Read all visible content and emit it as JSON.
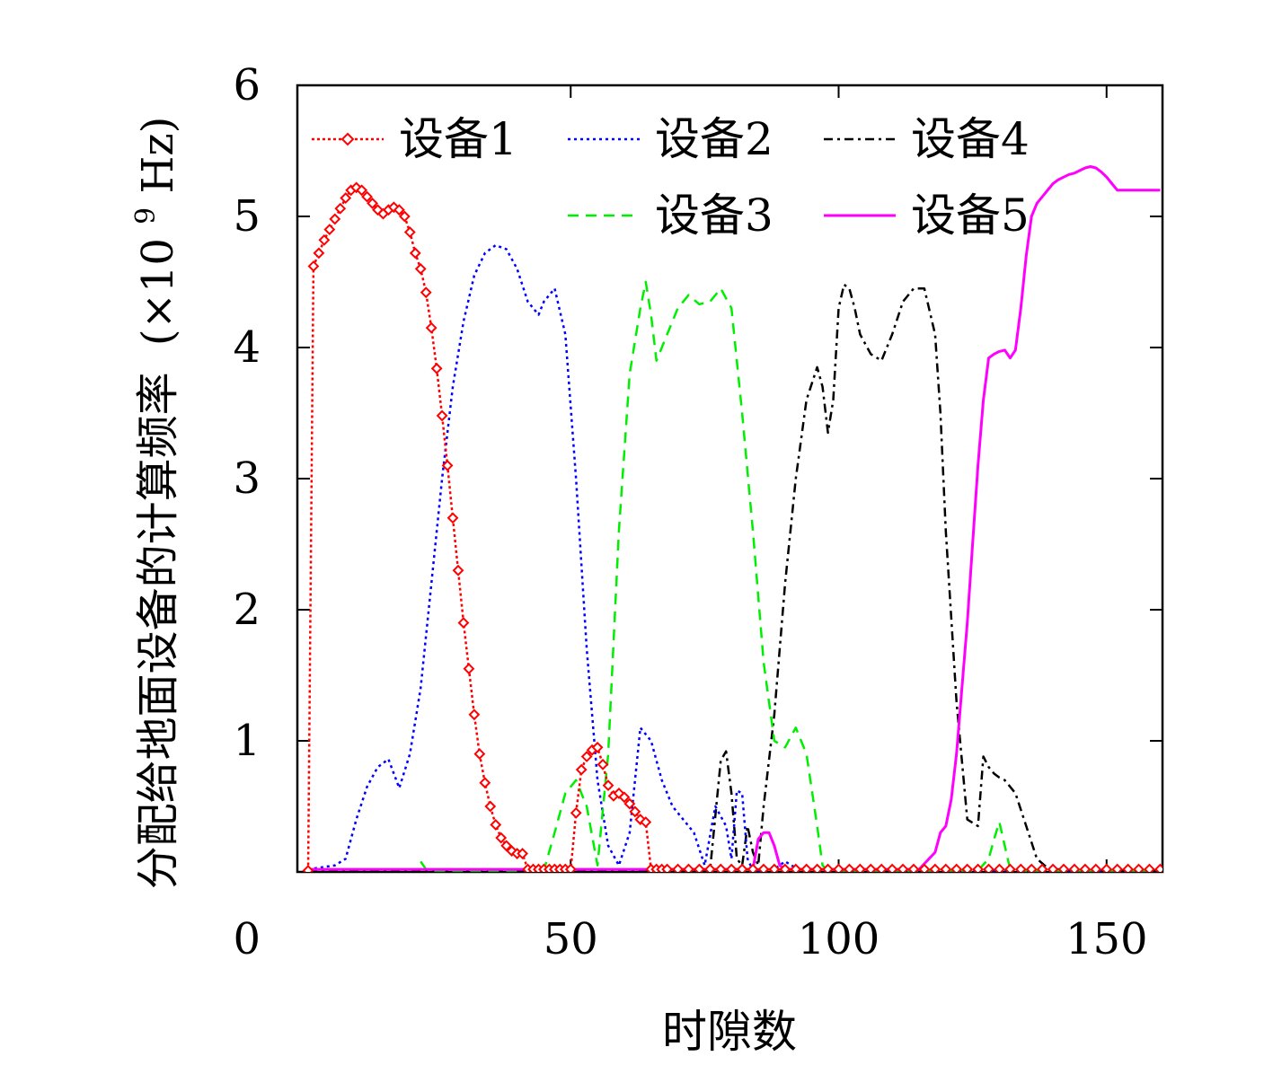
{
  "chart_data": {
    "type": "line",
    "xlabel": "时隙数",
    "ylabel": "分配给地面设备的计算频率 (×10⁹ Hz)",
    "ylabel_main": "分配给地面设备的计算频率",
    "ylabel_unit": "(×10",
    "ylabel_exp": "9",
    "ylabel_unit_end": " Hz)",
    "xlim": [
      0,
      160
    ],
    "ylim": [
      0,
      6
    ],
    "xticks": [
      0,
      50,
      100,
      150
    ],
    "yticks": [
      0,
      1,
      2,
      3,
      4,
      5,
      6
    ],
    "grid": false,
    "legend_placement": "top",
    "series": [
      {
        "name": "设备1",
        "color": "#ff0000",
        "style": "dotted-diamond",
        "x": [
          1,
          2,
          3,
          4,
          5,
          6,
          7,
          8,
          9,
          10,
          11,
          12,
          13,
          14,
          15,
          16,
          17,
          18,
          19,
          20,
          21,
          22,
          23,
          24,
          25,
          26,
          27,
          28,
          29,
          30,
          31,
          32,
          33,
          34,
          35,
          36,
          37,
          38,
          39,
          40,
          41,
          42,
          43,
          44,
          45,
          46,
          47,
          48,
          49,
          50,
          51,
          52,
          53,
          54,
          55,
          56,
          57,
          58,
          59,
          60,
          61,
          62,
          63,
          64,
          65,
          66,
          67,
          68,
          70,
          72,
          74,
          76,
          78,
          80,
          82,
          84,
          86,
          88,
          90,
          92,
          94,
          96,
          98,
          100,
          102,
          104,
          106,
          108,
          110,
          112,
          114,
          116,
          118,
          120,
          122,
          124,
          126,
          128,
          130,
          132,
          134,
          136,
          138,
          140,
          142,
          144,
          146,
          148,
          150,
          152,
          154,
          156,
          158,
          160
        ],
        "values": [
          0.01,
          4.62,
          4.72,
          4.82,
          4.9,
          4.98,
          5.06,
          5.14,
          5.2,
          5.22,
          5.2,
          5.15,
          5.1,
          5.05,
          5.02,
          5.05,
          5.07,
          5.05,
          5.0,
          4.88,
          4.72,
          4.6,
          4.42,
          4.15,
          3.84,
          3.48,
          3.1,
          2.7,
          2.3,
          1.9,
          1.55,
          1.2,
          0.9,
          0.68,
          0.5,
          0.36,
          0.26,
          0.2,
          0.16,
          0.14,
          0.14,
          0.02,
          0.02,
          0.02,
          0.02,
          0.02,
          0.02,
          0.02,
          0.02,
          0.02,
          0.45,
          0.78,
          0.88,
          0.93,
          0.95,
          0.82,
          0.66,
          0.58,
          0.6,
          0.57,
          0.52,
          0.46,
          0.4,
          0.38,
          0.02,
          0.02,
          0.02,
          0.02,
          0.02,
          0.02,
          0.02,
          0.02,
          0.02,
          0.02,
          0.02,
          0.02,
          0.02,
          0.02,
          0.02,
          0.02,
          0.02,
          0.02,
          0.02,
          0.02,
          0.02,
          0.02,
          0.02,
          0.02,
          0.02,
          0.02,
          0.02,
          0.02,
          0.02,
          0.02,
          0.02,
          0.02,
          0.02,
          0.02,
          0.02,
          0.02,
          0.02,
          0.02,
          0.02,
          0.02,
          0.02,
          0.02,
          0.02,
          0.02,
          0.02,
          0.02,
          0.02,
          0.02,
          0.02,
          0.02
        ]
      },
      {
        "name": "设备2",
        "color": "#0000ff",
        "style": "dotted",
        "x": [
          1,
          6,
          8,
          10,
          12,
          14,
          16,
          18,
          20,
          22,
          24,
          26,
          28,
          30,
          32,
          34,
          36,
          38,
          40,
          42,
          44,
          45,
          47,
          49,
          51,
          53,
          55,
          57,
          59,
          61,
          63,
          65,
          67,
          69,
          71,
          73,
          75,
          77,
          79,
          80,
          81,
          82,
          83,
          84,
          85,
          86,
          88,
          90,
          92,
          94,
          96,
          98,
          100,
          120,
          140,
          160
        ],
        "values": [
          0.02,
          0.05,
          0.1,
          0.4,
          0.65,
          0.8,
          0.86,
          0.64,
          0.9,
          1.4,
          2.2,
          3.0,
          3.7,
          4.2,
          4.55,
          4.72,
          4.78,
          4.75,
          4.6,
          4.35,
          4.25,
          4.35,
          4.45,
          4.1,
          3.0,
          1.7,
          0.7,
          0.2,
          0.05,
          0.3,
          1.1,
          1.0,
          0.7,
          0.5,
          0.4,
          0.3,
          0.05,
          0.5,
          0.35,
          0.1,
          0.62,
          0.6,
          0.1,
          0.01,
          0.01,
          0.01,
          0.02,
          0.08,
          0.03,
          0.02,
          0.02,
          0.02,
          0.02,
          0.01,
          0.01,
          0.01
        ]
      },
      {
        "name": "设备3",
        "color": "#00ee00",
        "style": "dashed",
        "x": [
          22,
          23,
          24,
          45,
          47,
          49,
          51,
          53,
          55,
          57,
          59,
          61,
          63,
          64,
          65,
          66,
          67,
          68,
          70,
          72,
          74,
          76,
          78,
          80,
          82,
          84,
          86,
          88,
          90,
          92,
          94,
          96,
          97,
          98,
          100,
          102,
          104,
          106,
          110,
          115,
          120,
          124,
          126,
          128,
          129,
          130,
          132,
          135,
          140,
          145,
          150,
          155,
          160
        ],
        "values": [
          0.08,
          0.02,
          0.01,
          0.01,
          0.3,
          0.6,
          0.7,
          0.5,
          0.05,
          0.9,
          2.6,
          3.8,
          4.3,
          4.5,
          4.25,
          3.9,
          4.0,
          4.1,
          4.3,
          4.4,
          4.33,
          4.35,
          4.45,
          4.3,
          3.5,
          2.6,
          1.6,
          1.0,
          0.95,
          1.1,
          0.9,
          0.35,
          0.05,
          0.01,
          0.01,
          0.01,
          0.01,
          0.01,
          0.01,
          0.01,
          0.01,
          0.01,
          0.01,
          0.1,
          0.25,
          0.38,
          0.02,
          0.01,
          0.01,
          0.01,
          0.01,
          0.01,
          0.01
        ]
      },
      {
        "name": "设备4",
        "color": "#000000",
        "style": "dash-dot",
        "x": [
          1,
          76,
          78,
          79,
          80,
          81,
          82,
          83,
          84,
          85,
          86,
          88,
          90,
          92,
          94,
          96,
          97,
          98,
          99,
          100,
          101,
          102,
          103,
          104,
          106,
          108,
          110,
          112,
          114,
          116,
          118,
          119,
          120,
          122,
          124,
          126,
          127,
          128,
          129,
          130,
          131,
          133,
          135,
          137,
          139,
          141,
          143,
          145,
          150,
          155,
          160
        ],
        "values": [
          0.01,
          0.01,
          0.85,
          0.92,
          0.6,
          0.1,
          0.05,
          0.35,
          0.15,
          0.05,
          0.5,
          1.2,
          2.2,
          3.0,
          3.6,
          3.85,
          3.7,
          3.35,
          3.6,
          4.3,
          4.48,
          4.45,
          4.3,
          4.1,
          3.95,
          3.9,
          4.1,
          4.35,
          4.45,
          4.45,
          4.1,
          3.5,
          2.6,
          1.3,
          0.4,
          0.35,
          0.88,
          0.8,
          0.75,
          0.72,
          0.7,
          0.6,
          0.35,
          0.1,
          0.03,
          0.02,
          0.01,
          0.01,
          0.01,
          0.01,
          0.01
        ]
      },
      {
        "name": "设备5",
        "color": "#ff00ff",
        "style": "solid",
        "x": [
          1,
          84,
          85,
          86,
          87,
          88,
          89,
          90,
          100,
          115,
          118,
          119,
          120,
          121,
          122,
          123,
          124,
          125,
          126,
          127,
          128,
          129,
          130,
          131,
          132,
          133,
          134,
          135,
          136,
          137,
          138,
          139,
          140,
          141,
          142,
          143,
          144,
          145,
          146,
          147,
          148,
          149,
          150,
          151,
          152,
          153,
          154,
          155,
          156,
          157,
          158,
          159,
          160
        ],
        "values": [
          0.02,
          0.02,
          0.25,
          0.3,
          0.3,
          0.2,
          0.05,
          0.02,
          0.02,
          0.02,
          0.15,
          0.3,
          0.35,
          0.55,
          0.9,
          1.4,
          1.9,
          2.5,
          3.1,
          3.6,
          3.92,
          3.95,
          3.97,
          3.98,
          3.92,
          3.98,
          4.3,
          4.7,
          5.0,
          5.1,
          5.15,
          5.2,
          5.25,
          5.28,
          5.3,
          5.32,
          5.33,
          5.35,
          5.37,
          5.38,
          5.37,
          5.34,
          5.3,
          5.25,
          5.2,
          5.2,
          5.2,
          5.2,
          5.2,
          5.2,
          5.2,
          5.2,
          5.2
        ]
      }
    ]
  }
}
